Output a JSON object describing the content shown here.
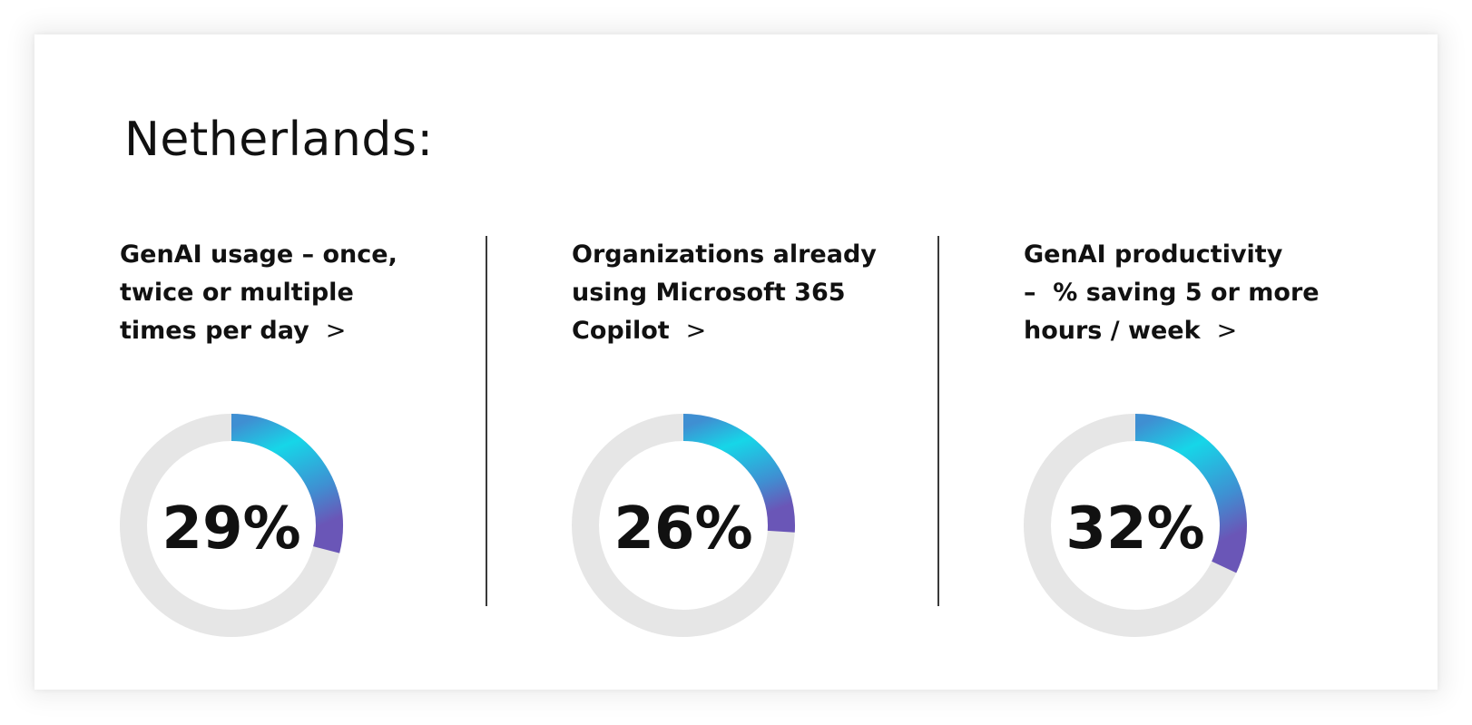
{
  "heading": "Netherlands:",
  "colors": {
    "track": "#e6e6e6",
    "gradient_start": "#16d6e8",
    "gradient_mid": "#3f8fd2",
    "gradient_end": "#6a56b7",
    "text": "#111111",
    "divider": "#3a3a3a"
  },
  "metrics": [
    {
      "title_lines": [
        "GenAI usage – once,",
        "twice or multiple",
        "times per day"
      ],
      "chevron": ">",
      "value_label": "29%"
    },
    {
      "title_lines": [
        "Organizations already",
        "using Microsoft 365",
        "Copilot"
      ],
      "chevron": ">",
      "value_label": "26%"
    },
    {
      "title_lines": [
        "GenAI productivity",
        "–  % saving 5 or more",
        "hours / week"
      ],
      "chevron": ">",
      "value_label": "32%"
    }
  ],
  "chart_data": [
    {
      "type": "pie",
      "categories": [
        "GenAI usage – once, twice or multiple times per day",
        ""
      ],
      "values": [
        29,
        71
      ]
    },
    {
      "type": "pie",
      "categories": [
        "Organizations already using Microsoft 365 Copilot",
        ""
      ],
      "values": [
        26,
        74
      ]
    },
    {
      "type": "pie",
      "categories": [
        "GenAI productivity – % saving 5 or more hours / week",
        ""
      ],
      "values": [
        32,
        68
      ]
    }
  ]
}
